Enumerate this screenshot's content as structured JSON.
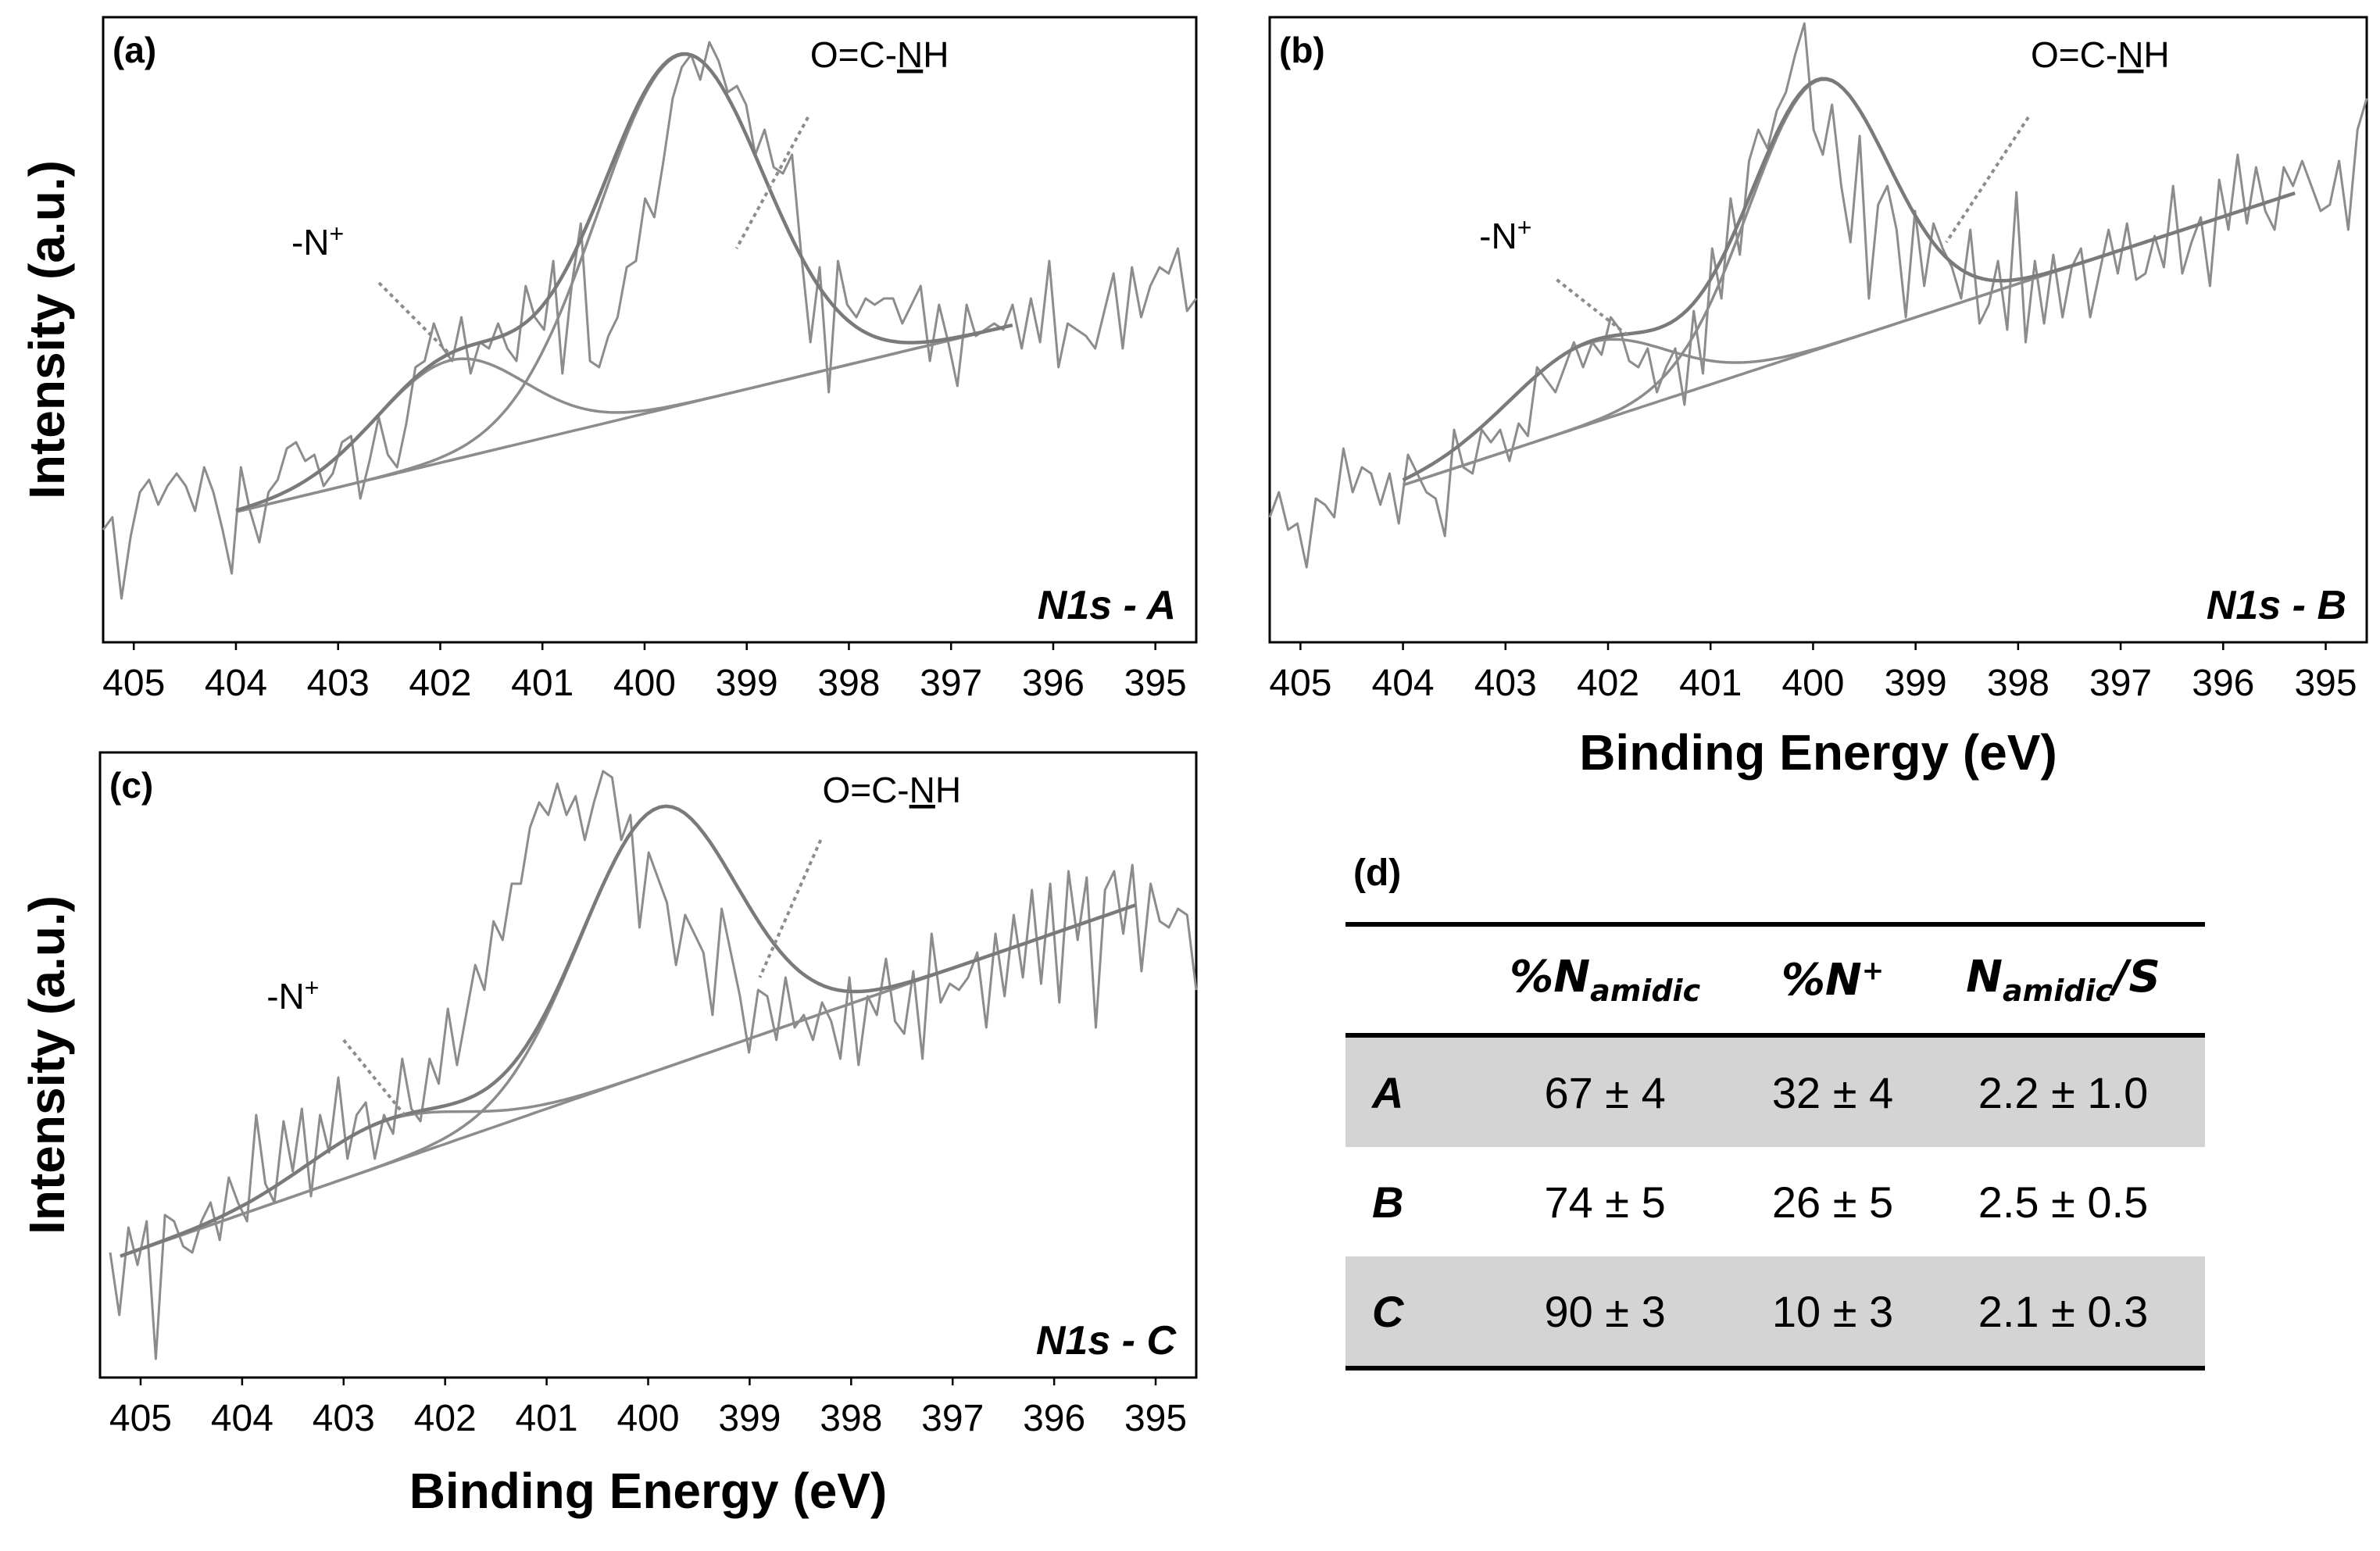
{
  "figure": {
    "line_color": "#8c8c8c",
    "table_shade_color": "#d4d4d4"
  },
  "chart_data": [
    {
      "type": "line",
      "panel": "(a)",
      "name_label": "N1s - A",
      "xlabel": "",
      "ylabel": "Intensity (a.u.)",
      "x_reversed": true,
      "xlim": [
        405.3,
        394.6
      ],
      "ylim": [
        0,
        1
      ],
      "xticks": [
        "405",
        "404",
        "403",
        "402",
        "401",
        "400",
        "399",
        "398",
        "397",
        "396",
        "395"
      ],
      "xtick_values": [
        405,
        404,
        403,
        402,
        401,
        400,
        399,
        398,
        397,
        396,
        395
      ],
      "annotations": [
        {
          "text": "-N",
          "sup": "+",
          "label_at": [
            403.2,
            0.62
          ],
          "leader_from": [
            402.6,
            0.575
          ],
          "leader_to": [
            401.9,
            0.46
          ]
        },
        {
          "text": "O=C-",
          "underlined": "N",
          "tail": "H",
          "label_at": [
            397.7,
            0.92
          ],
          "leader_from": [
            398.4,
            0.84
          ],
          "leader_to": [
            399.1,
            0.63
          ]
        }
      ],
      "series": [
        {
          "role": "raw",
          "x_start": 405.3,
          "x_end": 394.6,
          "values": [
            0.18,
            0.2,
            0.07,
            0.17,
            0.24,
            0.26,
            0.22,
            0.25,
            0.27,
            0.25,
            0.21,
            0.28,
            0.24,
            0.18,
            0.11,
            0.28,
            0.21,
            0.16,
            0.24,
            0.26,
            0.31,
            0.32,
            0.29,
            0.3,
            0.25,
            0.27,
            0.32,
            0.33,
            0.23,
            0.29,
            0.36,
            0.3,
            0.28,
            0.35,
            0.44,
            0.45,
            0.51,
            0.47,
            0.45,
            0.52,
            0.43,
            0.48,
            0.47,
            0.51,
            0.47,
            0.45,
            0.57,
            0.52,
            0.5,
            0.61,
            0.43,
            0.57,
            0.67,
            0.45,
            0.44,
            0.49,
            0.52,
            0.6,
            0.61,
            0.71,
            0.68,
            0.77,
            0.87,
            0.92,
            0.94,
            0.9,
            0.96,
            0.93,
            0.88,
            0.89,
            0.86,
            0.78,
            0.82,
            0.76,
            0.75,
            0.78,
            0.62,
            0.48,
            0.6,
            0.4,
            0.61,
            0.54,
            0.52,
            0.55,
            0.54,
            0.55,
            0.55,
            0.51,
            0.54,
            0.57,
            0.45,
            0.54,
            0.48,
            0.41,
            0.54,
            0.49,
            0.5,
            0.51,
            0.5,
            0.54,
            0.47,
            0.55,
            0.48,
            0.61,
            0.44,
            0.51,
            0.5,
            0.49,
            0.47,
            0.53,
            0.59,
            0.47,
            0.6,
            0.52,
            0.57,
            0.6,
            0.59,
            0.63,
            0.53,
            0.55
          ]
        },
        {
          "role": "baseline",
          "x_start": 404.0,
          "x_end": 396.4
        },
        {
          "role": "component",
          "label": "-N+",
          "center": 401.9,
          "fwhm": 1.7,
          "height": 0.16
        },
        {
          "role": "component",
          "label": "O=C-NH",
          "center": 399.65,
          "fwhm": 1.9,
          "height": 0.56
        },
        {
          "role": "envelope",
          "x_start": 404.0,
          "x_end": 396.4
        }
      ]
    },
    {
      "type": "line",
      "panel": "(b)",
      "name_label": "N1s - B",
      "xlabel": "Binding Energy (eV)",
      "ylabel": "",
      "x_reversed": true,
      "xlim": [
        405.3,
        394.6
      ],
      "ylim": [
        0,
        1
      ],
      "xticks": [
        "405",
        "404",
        "403",
        "402",
        "401",
        "400",
        "399",
        "398",
        "397",
        "396",
        "395"
      ],
      "xtick_values": [
        405,
        404,
        403,
        402,
        401,
        400,
        399,
        398,
        397,
        396,
        395
      ],
      "annotations": [
        {
          "text": "-N",
          "sup": "+",
          "label_at": [
            403.0,
            0.63
          ],
          "leader_from": [
            402.5,
            0.58
          ],
          "leader_to": [
            401.8,
            0.49
          ]
        },
        {
          "text": "O=C-",
          "underlined": "N",
          "tail": "H",
          "label_at": [
            397.2,
            0.92
          ],
          "leader_from": [
            397.9,
            0.84
          ],
          "leader_to": [
            398.7,
            0.64
          ]
        }
      ],
      "series": [
        {
          "role": "raw",
          "x_start": 405.3,
          "x_end": 394.6,
          "values": [
            0.2,
            0.24,
            0.18,
            0.19,
            0.12,
            0.23,
            0.22,
            0.2,
            0.31,
            0.24,
            0.28,
            0.27,
            0.22,
            0.27,
            0.19,
            0.3,
            0.27,
            0.24,
            0.23,
            0.17,
            0.34,
            0.28,
            0.27,
            0.34,
            0.32,
            0.34,
            0.29,
            0.35,
            0.33,
            0.44,
            0.42,
            0.4,
            0.44,
            0.48,
            0.44,
            0.48,
            0.46,
            0.52,
            0.5,
            0.45,
            0.44,
            0.47,
            0.4,
            0.44,
            0.47,
            0.38,
            0.53,
            0.43,
            0.63,
            0.55,
            0.71,
            0.62,
            0.77,
            0.82,
            0.79,
            0.85,
            0.88,
            0.94,
            0.99,
            0.82,
            0.78,
            0.86,
            0.73,
            0.64,
            0.81,
            0.55,
            0.7,
            0.73,
            0.66,
            0.52,
            0.69,
            0.57,
            0.67,
            0.63,
            0.6,
            0.55,
            0.66,
            0.51,
            0.54,
            0.61,
            0.5,
            0.72,
            0.48,
            0.61,
            0.51,
            0.62,
            0.52,
            0.6,
            0.63,
            0.52,
            0.59,
            0.66,
            0.59,
            0.67,
            0.58,
            0.59,
            0.65,
            0.6,
            0.73,
            0.59,
            0.64,
            0.68,
            0.57,
            0.74,
            0.66,
            0.78,
            0.67,
            0.76,
            0.69,
            0.66,
            0.76,
            0.73,
            0.77,
            0.73,
            0.69,
            0.7,
            0.77,
            0.66,
            0.82,
            0.87
          ]
        },
        {
          "role": "baseline",
          "x_start": 404.0,
          "x_end": 395.3
        },
        {
          "role": "component",
          "label": "-N+",
          "center": 402.2,
          "fwhm": 1.8,
          "height": 0.13
        },
        {
          "role": "component",
          "label": "O=C-NH",
          "center": 399.95,
          "fwhm": 1.6,
          "height": 0.43
        },
        {
          "role": "envelope",
          "x_start": 404.0,
          "x_end": 395.3
        }
      ]
    },
    {
      "type": "line",
      "panel": "(c)",
      "name_label": "N1s - C",
      "xlabel": "Binding Energy (eV)",
      "ylabel": "Intensity (a.u.)",
      "x_reversed": true,
      "xlim": [
        405.4,
        394.6
      ],
      "ylim": [
        0,
        1
      ],
      "xticks": [
        "405",
        "404",
        "403",
        "402",
        "401",
        "400",
        "399",
        "398",
        "397",
        "396",
        "395"
      ],
      "xtick_values": [
        405,
        404,
        403,
        402,
        401,
        400,
        399,
        398,
        397,
        396,
        395
      ],
      "annotations": [
        {
          "text": "-N",
          "sup": "+",
          "label_at": [
            403.5,
            0.59
          ],
          "leader_from": [
            403.0,
            0.54
          ],
          "leader_to": [
            402.4,
            0.42
          ]
        },
        {
          "text": "O=C-",
          "underlined": "N",
          "tail": "H",
          "label_at": [
            397.6,
            0.92
          ],
          "leader_from": [
            398.3,
            0.86
          ],
          "leader_to": [
            398.9,
            0.64
          ]
        }
      ],
      "series": [
        {
          "role": "raw",
          "x_start": 405.3,
          "x_end": 394.6,
          "values": [
            0.2,
            0.1,
            0.24,
            0.18,
            0.25,
            0.03,
            0.26,
            0.25,
            0.21,
            0.2,
            0.25,
            0.28,
            0.22,
            0.32,
            0.28,
            0.25,
            0.42,
            0.31,
            0.28,
            0.41,
            0.33,
            0.43,
            0.29,
            0.42,
            0.36,
            0.48,
            0.35,
            0.42,
            0.44,
            0.35,
            0.42,
            0.39,
            0.51,
            0.43,
            0.41,
            0.51,
            0.47,
            0.59,
            0.5,
            0.58,
            0.66,
            0.62,
            0.73,
            0.7,
            0.79,
            0.79,
            0.88,
            0.92,
            0.9,
            0.95,
            0.9,
            0.93,
            0.86,
            0.92,
            0.97,
            0.96,
            0.86,
            0.9,
            0.72,
            0.84,
            0.8,
            0.76,
            0.66,
            0.74,
            0.71,
            0.68,
            0.58,
            0.75,
            0.68,
            0.61,
            0.52,
            0.62,
            0.61,
            0.54,
            0.64,
            0.56,
            0.58,
            0.54,
            0.6,
            0.57,
            0.51,
            0.64,
            0.5,
            0.61,
            0.58,
            0.67,
            0.57,
            0.55,
            0.65,
            0.51,
            0.71,
            0.6,
            0.63,
            0.62,
            0.64,
            0.68,
            0.56,
            0.71,
            0.61,
            0.74,
            0.64,
            0.78,
            0.63,
            0.79,
            0.6,
            0.81,
            0.7,
            0.8,
            0.56,
            0.78,
            0.81,
            0.71,
            0.82,
            0.65,
            0.79,
            0.73,
            0.72,
            0.75,
            0.74,
            0.62
          ]
        },
        {
          "role": "baseline",
          "x_start": 405.2,
          "x_end": 395.2
        },
        {
          "role": "component",
          "label": "-N+",
          "center": 402.6,
          "fwhm": 1.8,
          "height": 0.07
        },
        {
          "role": "component",
          "label": "O=C-NH",
          "center": 399.9,
          "fwhm": 1.8,
          "height": 0.42
        },
        {
          "role": "envelope",
          "x_start": 405.2,
          "x_end": 395.2
        }
      ]
    },
    {
      "type": "table",
      "panel": "(d)",
      "columns": [
        {
          "main": "%N",
          "sub": "amidic",
          "sup": "",
          "tail": ""
        },
        {
          "main": "%N",
          "sub": "",
          "sup": "+",
          "tail": ""
        },
        {
          "main": "N",
          "sub": "amidic",
          "sup": "",
          "tail": "/S"
        }
      ],
      "rows": [
        {
          "label": "A",
          "cells": [
            "67 ± 4",
            "32 ± 4",
            "2.2 ± 1.0"
          ],
          "shaded": true
        },
        {
          "label": "B",
          "cells": [
            "74 ± 5",
            "26 ± 5",
            "2.5 ± 0.5"
          ],
          "shaded": false
        },
        {
          "label": "C",
          "cells": [
            "90 ± 3",
            "10 ± 3",
            "2.1 ± 0.3"
          ],
          "shaded": true
        }
      ]
    }
  ]
}
